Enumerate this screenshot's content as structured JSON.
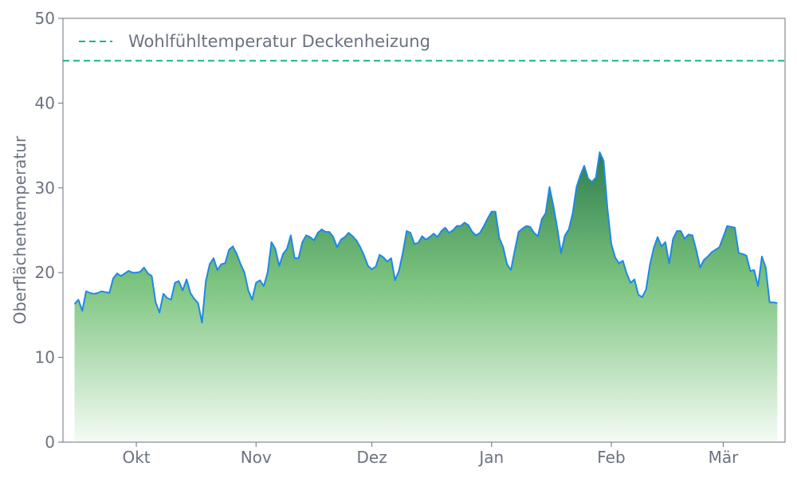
{
  "chart_data": {
    "type": "area",
    "ylabel": "Oberflächentemperatur",
    "ylim": [
      0,
      50
    ],
    "yticks": [
      0,
      10,
      20,
      30,
      40,
      50
    ],
    "x_start": "2023-09-15",
    "x_end": "2024-03-15",
    "xticks": [
      {
        "date": "2023-10-01",
        "label": "Okt"
      },
      {
        "date": "2023-11-01",
        "label": "Nov"
      },
      {
        "date": "2023-12-01",
        "label": "Dez"
      },
      {
        "date": "2024-01-01",
        "label": "Jan"
      },
      {
        "date": "2024-02-01",
        "label": "Feb"
      },
      {
        "date": "2024-03-01",
        "label": "Mär"
      }
    ],
    "reference_line": {
      "name": "Wohlfühltemperatur Deckenheizung",
      "value": 45,
      "color": "#10b981"
    },
    "legend_position": "top-left",
    "grid": false,
    "colors": {
      "line": "#1e88e5",
      "fill_top": "#2e7d4f",
      "fill_bottom": "#f4fbf4",
      "axis": "#6b7280"
    },
    "series": [
      {
        "x": [
          "2023-09-15",
          "2023-09-16",
          "2023-09-17",
          "2023-09-18",
          "2023-09-19",
          "2023-09-20",
          "2023-09-21",
          "2023-09-22",
          "2023-09-23",
          "2023-09-24",
          "2023-09-25",
          "2023-09-26",
          "2023-09-27",
          "2023-09-28",
          "2023-09-29",
          "2023-09-30",
          "2023-10-01",
          "2023-10-02",
          "2023-10-03",
          "2023-10-04",
          "2023-10-05",
          "2023-10-06",
          "2023-10-07",
          "2023-10-08",
          "2023-10-09",
          "2023-10-10",
          "2023-10-11",
          "2023-10-12",
          "2023-10-13",
          "2023-10-14",
          "2023-10-15",
          "2023-10-16",
          "2023-10-17",
          "2023-10-18",
          "2023-10-19",
          "2023-10-20",
          "2023-10-21",
          "2023-10-22",
          "2023-10-23",
          "2023-10-24",
          "2023-10-25",
          "2023-10-26",
          "2023-10-27",
          "2023-10-28",
          "2023-10-29",
          "2023-10-30",
          "2023-10-31",
          "2023-11-01",
          "2023-11-02",
          "2023-11-03",
          "2023-11-04",
          "2023-11-05",
          "2023-11-06",
          "2023-11-07",
          "2023-11-08",
          "2023-11-09",
          "2023-11-10",
          "2023-11-11",
          "2023-11-12",
          "2023-11-13",
          "2023-11-14",
          "2023-11-15",
          "2023-11-16",
          "2023-11-17",
          "2023-11-18",
          "2023-11-19",
          "2023-11-20",
          "2023-11-21",
          "2023-11-22",
          "2023-11-23",
          "2023-11-24",
          "2023-11-25",
          "2023-11-26",
          "2023-11-27",
          "2023-11-28",
          "2023-11-29",
          "2023-11-30",
          "2023-12-01",
          "2023-12-02",
          "2023-12-03",
          "2023-12-04",
          "2023-12-05",
          "2023-12-06",
          "2023-12-07",
          "2023-12-08",
          "2023-12-09",
          "2023-12-10",
          "2023-12-11",
          "2023-12-12",
          "2023-12-13",
          "2023-12-14",
          "2023-12-15",
          "2023-12-16",
          "2023-12-17",
          "2023-12-18",
          "2023-12-19",
          "2023-12-20",
          "2023-12-21",
          "2023-12-22",
          "2023-12-23",
          "2023-12-24",
          "2023-12-25",
          "2023-12-26",
          "2023-12-27",
          "2023-12-28",
          "2023-12-29",
          "2023-12-30",
          "2023-12-31",
          "2024-01-01",
          "2024-01-02",
          "2024-01-03",
          "2024-01-04",
          "2024-01-05",
          "2024-01-06",
          "2024-01-07",
          "2024-01-08",
          "2024-01-09",
          "2024-01-10",
          "2024-01-11",
          "2024-01-12",
          "2024-01-13",
          "2024-01-14",
          "2024-01-15",
          "2024-01-16",
          "2024-01-17",
          "2024-01-18",
          "2024-01-19",
          "2024-01-20",
          "2024-01-21",
          "2024-01-22",
          "2024-01-23",
          "2024-01-24",
          "2024-01-25",
          "2024-01-26",
          "2024-01-27",
          "2024-01-28",
          "2024-01-29",
          "2024-01-30",
          "2024-01-31",
          "2024-02-01",
          "2024-02-02",
          "2024-02-03",
          "2024-02-04",
          "2024-02-05",
          "2024-02-06",
          "2024-02-07",
          "2024-02-08",
          "2024-02-09",
          "2024-02-10",
          "2024-02-11",
          "2024-02-12",
          "2024-02-13",
          "2024-02-14",
          "2024-02-15",
          "2024-02-16",
          "2024-02-17",
          "2024-02-18",
          "2024-02-19",
          "2024-02-20",
          "2024-02-21",
          "2024-02-22",
          "2024-02-23",
          "2024-02-24",
          "2024-02-25",
          "2024-02-26",
          "2024-02-27",
          "2024-02-28",
          "2024-02-29",
          "2024-03-01",
          "2024-03-02",
          "2024-03-03",
          "2024-03-04",
          "2024-03-05",
          "2024-03-06",
          "2024-03-07",
          "2024-03-08",
          "2024-03-09",
          "2024-03-10",
          "2024-03-11",
          "2024-03-12",
          "2024-03-13",
          "2024-03-14",
          "2024-03-15"
        ],
        "values": [
          16.3,
          16.8,
          15.5,
          17.8,
          17.6,
          17.5,
          17.6,
          17.8,
          17.7,
          17.6,
          19.3,
          19.9,
          19.6,
          19.9,
          20.2,
          20.0,
          20.0,
          20.1,
          20.6,
          19.9,
          19.6,
          16.5,
          15.3,
          17.5,
          17.0,
          16.8,
          18.8,
          19.0,
          17.9,
          19.2,
          17.6,
          16.9,
          16.4,
          14.1,
          19.0,
          21.0,
          21.7,
          20.3,
          21.0,
          21.1,
          22.7,
          23.1,
          22.2,
          21.0,
          20.0,
          17.9,
          16.8,
          18.8,
          19.1,
          18.4,
          20.0,
          23.6,
          22.8,
          20.8,
          22.2,
          22.8,
          24.4,
          21.7,
          21.7,
          23.6,
          24.4,
          24.2,
          23.8,
          24.7,
          25.1,
          24.8,
          24.8,
          24.2,
          23.0,
          23.9,
          24.2,
          24.7,
          24.3,
          23.8,
          23.0,
          22.0,
          20.8,
          20.4,
          20.7,
          22.1,
          21.8,
          21.3,
          21.7,
          19.1,
          20.2,
          22.3,
          24.9,
          24.7,
          23.4,
          23.5,
          24.3,
          23.9,
          24.2,
          24.6,
          24.2,
          24.9,
          25.3,
          24.7,
          25.0,
          25.5,
          25.5,
          25.9,
          25.6,
          24.8,
          24.4,
          24.7,
          25.5,
          26.4,
          27.2,
          27.2,
          24.1,
          23.0,
          21.0,
          20.3,
          22.6,
          24.8,
          25.2,
          25.5,
          25.4,
          24.7,
          24.3,
          26.3,
          27.0,
          30.1,
          27.9,
          25.3,
          22.3,
          24.4,
          25.1,
          27.0,
          30.1,
          31.5,
          32.6,
          31.1,
          30.7,
          31.2,
          34.2,
          33.2,
          27.6,
          23.4,
          21.8,
          21.1,
          21.4,
          19.9,
          18.8,
          19.2,
          17.4,
          17.1,
          18.0,
          20.9,
          22.9,
          24.2,
          23.1,
          23.6,
          21.1,
          24.0,
          24.9,
          24.9,
          24.0,
          24.5,
          24.4,
          22.7,
          20.6,
          21.5,
          21.9,
          22.4,
          22.7,
          23.0,
          24.2,
          25.5,
          25.4,
          25.3,
          22.3,
          22.2,
          22.0,
          20.2,
          20.3,
          18.4,
          21.9,
          20.6,
          16.5,
          16.5,
          16.4
        ]
      }
    ]
  }
}
